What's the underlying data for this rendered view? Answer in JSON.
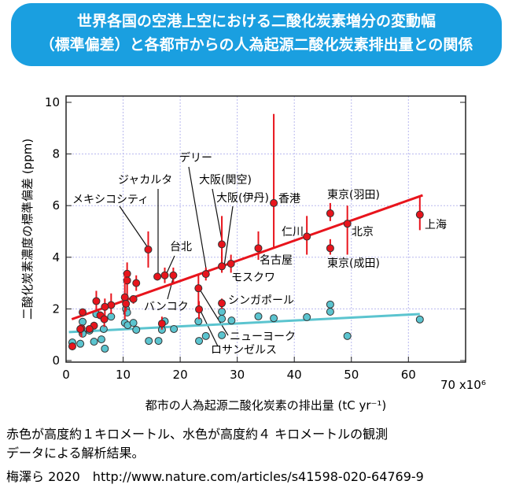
{
  "banner": {
    "line1": "世界各国の空港上空における二酸化炭素増分の変動幅",
    "line2": "（標準偏差）と各都市からの人為起源二酸化炭素排出量との関係",
    "color": "#1a9fe0"
  },
  "caption": {
    "line1": "赤色が高度約１キロメートル、水色が高度約４ キロメートルの観測",
    "line2": "データによる解析結果。",
    "line3": "梅澤ら 2020　http://www.nature.com/articles/s41598-020-64769-9"
  },
  "chart_data": {
    "type": "scatter",
    "xlabel": "都市の人為起源二酸化炭素の排出量 (tC yr⁻¹)",
    "ylabel": "二酸化炭素濃度の標準偏差 (ppm)",
    "x_multiplier_label": "70 x10⁶",
    "xlim": [
      0,
      70
    ],
    "ylim": [
      0,
      10
    ],
    "xticks": [
      "0",
      "10",
      "20",
      "30",
      "40",
      "50",
      "60"
    ],
    "yticks": [
      "0",
      "2",
      "4",
      "6",
      "8",
      "10"
    ],
    "grid": true,
    "colors": {
      "red": "#e8141c",
      "cyan": "#5bc4cf"
    },
    "series": [
      {
        "color": "red",
        "points": [
          {
            "x": 62.0,
            "y": 5.65,
            "err": [
              5.05,
              6.4
            ],
            "label": "上海"
          },
          {
            "x": 49.3,
            "y": 5.3,
            "err": [
              4.1,
              6.0
            ],
            "label": "北京"
          },
          {
            "x": 46.3,
            "y": 5.7,
            "err": [
              5.4,
              6.1
            ],
            "label": "東京(羽田)"
          },
          {
            "x": 46.3,
            "y": 4.35,
            "err": [
              4.1,
              4.7
            ],
            "label": "東京(成田)"
          },
          {
            "x": 42.2,
            "y": 4.8,
            "err": [
              4.1,
              5.6
            ],
            "label": "仁川"
          },
          {
            "x": 36.4,
            "y": 6.1,
            "err": [
              4.35,
              9.55
            ],
            "label": "香港"
          },
          {
            "x": 33.7,
            "y": 4.35,
            "err": [
              3.9,
              5.0
            ],
            "label": "名古屋"
          },
          {
            "x": 27.3,
            "y": 4.5,
            "err": [
              3.6,
              5.6
            ],
            "label": "大阪(関空)"
          },
          {
            "x": 27.3,
            "y": 3.65,
            "err": [
              3.4,
              4.2
            ],
            "label": "大阪(伊丹)"
          },
          {
            "x": 28.9,
            "y": 3.75,
            "err": [
              3.4,
              4.1
            ],
            "label": "モスクワ"
          },
          {
            "x": 24.5,
            "y": 3.35,
            "err": [
              3.1,
              3.6
            ],
            "label": "デリー"
          },
          {
            "x": 23.2,
            "y": 2.8,
            "err": [
              2.0,
              3.3
            ],
            "label": "ニューヨーク"
          },
          {
            "x": 23.3,
            "y": 1.98,
            "err": [
              1.6,
              2.3
            ],
            "label": "ロサンゼルス"
          },
          {
            "x": 27.3,
            "y": 2.22,
            "err": [
              2.0,
              2.4
            ],
            "label": "シンガポール"
          },
          {
            "x": 16.0,
            "y": 3.25,
            "err": [
              3.1,
              3.4
            ],
            "label": "ジャカルタ"
          },
          {
            "x": 14.4,
            "y": 4.3,
            "err": [
              3.6,
              5.0
            ],
            "label": "メキシコシティ"
          },
          {
            "x": 17.3,
            "y": 3.3,
            "err": [
              3.0,
              3.6
            ],
            "label": "台北"
          },
          {
            "x": 18.8,
            "y": 3.3,
            "err": [
              3.0,
              3.6
            ],
            "label": "バンコク"
          },
          {
            "x": 10.7,
            "y": 3.36,
            "err": [
              2.5,
              3.8
            ]
          },
          {
            "x": 10.7,
            "y": 3.1,
            "err": [
              2.4,
              3.4
            ]
          },
          {
            "x": 12.3,
            "y": 3.0,
            "err": [
              2.7,
              3.3
            ]
          },
          {
            "x": 10.3,
            "y": 2.45,
            "err": [
              1.6,
              3.3
            ]
          },
          {
            "x": 10.5,
            "y": 2.2,
            "err": [
              1.9,
              2.5
            ]
          },
          {
            "x": 11.8,
            "y": 2.38,
            "err": [
              2.2,
              2.5
            ]
          },
          {
            "x": 7.9,
            "y": 2.15,
            "err": [
              1.8,
              2.6
            ]
          },
          {
            "x": 6.8,
            "y": 2.08,
            "err": [
              1.6,
              2.4
            ]
          },
          {
            "x": 5.3,
            "y": 2.3,
            "err": [
              1.9,
              2.7
            ]
          },
          {
            "x": 2.9,
            "y": 1.87,
            "err": [
              1.7,
              2.0
            ]
          },
          {
            "x": 6.0,
            "y": 1.75,
            "err": [
              1.6,
              1.9
            ]
          },
          {
            "x": 6.7,
            "y": 1.6,
            "err": [
              1.3,
              1.8
            ]
          },
          {
            "x": 4.9,
            "y": 1.35,
            "err": [
              1.2,
              1.5
            ]
          },
          {
            "x": 4.1,
            "y": 1.22,
            "err": [
              1.1,
              1.3
            ]
          },
          {
            "x": 2.7,
            "y": 1.25,
            "err": [
              0.9,
              1.4
            ]
          },
          {
            "x": 2.5,
            "y": 1.22,
            "err": [
              1.0,
              1.4
            ]
          },
          {
            "x": 1.1,
            "y": 0.55,
            "err": [
              0.4,
              0.7
            ]
          },
          {
            "x": 16.8,
            "y": 1.43,
            "err": [
              1.2,
              1.7
            ]
          }
        ],
        "fit": {
          "x": [
            1.0,
            62.5
          ],
          "y": [
            1.6,
            6.4
          ]
        }
      },
      {
        "color": "cyan",
        "points": [
          {
            "x": 1.1,
            "y": 0.7
          },
          {
            "x": 2.5,
            "y": 0.65
          },
          {
            "x": 2.9,
            "y": 1.5
          },
          {
            "x": 2.9,
            "y": 1.04
          },
          {
            "x": 4.1,
            "y": 1.16
          },
          {
            "x": 4.9,
            "y": 0.73
          },
          {
            "x": 5.3,
            "y": 1.8
          },
          {
            "x": 6.2,
            "y": 0.82
          },
          {
            "x": 6.6,
            "y": 1.22
          },
          {
            "x": 6.8,
            "y": 0.46
          },
          {
            "x": 7.9,
            "y": 1.7
          },
          {
            "x": 10.3,
            "y": 1.46
          },
          {
            "x": 10.5,
            "y": 2.0
          },
          {
            "x": 10.7,
            "y": 1.86
          },
          {
            "x": 10.8,
            "y": 1.37
          },
          {
            "x": 11.8,
            "y": 1.46
          },
          {
            "x": 12.3,
            "y": 1.19
          },
          {
            "x": 14.5,
            "y": 0.76
          },
          {
            "x": 16.2,
            "y": 0.76
          },
          {
            "x": 16.8,
            "y": 1.19
          },
          {
            "x": 17.3,
            "y": 1.52
          },
          {
            "x": 18.9,
            "y": 1.22
          },
          {
            "x": 23.2,
            "y": 1.52
          },
          {
            "x": 23.3,
            "y": 0.76
          },
          {
            "x": 24.5,
            "y": 0.95
          },
          {
            "x": 27.3,
            "y": 1.89
          },
          {
            "x": 27.3,
            "y": 1.62
          },
          {
            "x": 27.3,
            "y": 0.98
          },
          {
            "x": 29.0,
            "y": 1.55
          },
          {
            "x": 33.7,
            "y": 1.71
          },
          {
            "x": 36.4,
            "y": 1.64
          },
          {
            "x": 42.2,
            "y": 1.68
          },
          {
            "x": 46.3,
            "y": 2.17
          },
          {
            "x": 46.3,
            "y": 1.89
          },
          {
            "x": 49.3,
            "y": 0.95
          },
          {
            "x": 62.0,
            "y": 1.59
          }
        ],
        "fit": {
          "x": [
            0.5,
            62.0
          ],
          "y": [
            1.1,
            1.8
          ]
        }
      }
    ]
  }
}
